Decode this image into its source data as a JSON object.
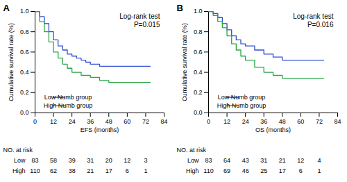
{
  "chart_data": [
    {
      "type": "step",
      "title": "A",
      "annotations": [
        "Log-rank test",
        "P=0.015"
      ],
      "x_label": "EFS (months)",
      "y_label": "Cumulative survival rate (%)",
      "xlim": [
        0,
        84
      ],
      "xticks": [
        0,
        12,
        24,
        36,
        48,
        60,
        72,
        84
      ],
      "ylim": [
        0,
        1
      ],
      "yticks": [
        {
          "value": 0,
          "label": "0.0"
        },
        0.2,
        0.4,
        0.6,
        0.8,
        {
          "value": 1,
          "label": "1.0"
        }
      ],
      "legend": "bottom-left",
      "series": [
        {
          "name": "Low Numb group",
          "color": "#2f4fd0",
          "x": [
            0,
            3,
            6,
            9,
            12,
            15,
            18,
            21,
            24,
            27,
            30,
            33,
            36,
            42,
            75
          ],
          "values": [
            1.0,
            0.95,
            0.88,
            0.8,
            0.72,
            0.66,
            0.62,
            0.58,
            0.56,
            0.54,
            0.52,
            0.5,
            0.48,
            0.46,
            0.46
          ]
        },
        {
          "name": "High Numb group",
          "color": "#2ba646",
          "x": [
            0,
            3,
            6,
            9,
            12,
            15,
            18,
            21,
            24,
            30,
            36,
            42,
            48,
            75
          ],
          "values": [
            1.0,
            0.9,
            0.8,
            0.7,
            0.6,
            0.54,
            0.48,
            0.44,
            0.4,
            0.37,
            0.35,
            0.32,
            0.3,
            0.3
          ]
        }
      ],
      "risk_table": {
        "title": "NO. at risk",
        "x": [
          0,
          12,
          24,
          36,
          48,
          60,
          72
        ],
        "rows": [
          {
            "name": "Low",
            "values": [
              83,
              58,
              39,
              31,
              20,
              12,
              3
            ]
          },
          {
            "name": "High",
            "values": [
              110,
              62,
              38,
              21,
              17,
              6,
              1
            ]
          }
        ]
      }
    },
    {
      "type": "step",
      "title": "B",
      "annotations": [
        "Log-rank test",
        "P=0.016"
      ],
      "x_label": "OS (months)",
      "y_label": "Cumulative survival rate (%)",
      "xlim": [
        0,
        84
      ],
      "xticks": [
        0,
        12,
        24,
        36,
        48,
        60,
        72,
        84
      ],
      "ylim": [
        0,
        1
      ],
      "yticks": [
        {
          "value": 0,
          "label": "0.0"
        },
        0.2,
        0.4,
        0.6,
        0.8,
        {
          "value": 1,
          "label": "1.0"
        }
      ],
      "legend": "bottom-left",
      "series": [
        {
          "name": "Low Numb group",
          "color": "#2f4fd0",
          "x": [
            0,
            3,
            6,
            9,
            12,
            15,
            18,
            21,
            24,
            30,
            36,
            42,
            48,
            75
          ],
          "values": [
            1.0,
            0.98,
            0.94,
            0.88,
            0.82,
            0.76,
            0.72,
            0.68,
            0.66,
            0.62,
            0.58,
            0.55,
            0.52,
            0.52
          ]
        },
        {
          "name": "High Numb group",
          "color": "#2ba646",
          "x": [
            0,
            3,
            6,
            9,
            12,
            15,
            18,
            21,
            24,
            30,
            36,
            42,
            48,
            75
          ],
          "values": [
            1.0,
            0.96,
            0.9,
            0.84,
            0.76,
            0.68,
            0.62,
            0.56,
            0.52,
            0.45,
            0.4,
            0.37,
            0.34,
            0.34
          ]
        }
      ],
      "risk_table": {
        "title": "NO. at risk",
        "x": [
          0,
          12,
          24,
          36,
          48,
          60,
          72
        ],
        "rows": [
          {
            "name": "Low",
            "values": [
              83,
              64,
              43,
              31,
              21,
              12,
              4
            ]
          },
          {
            "name": "High",
            "values": [
              110,
              69,
              46,
              25,
              17,
              6,
              1
            ]
          }
        ]
      }
    }
  ]
}
